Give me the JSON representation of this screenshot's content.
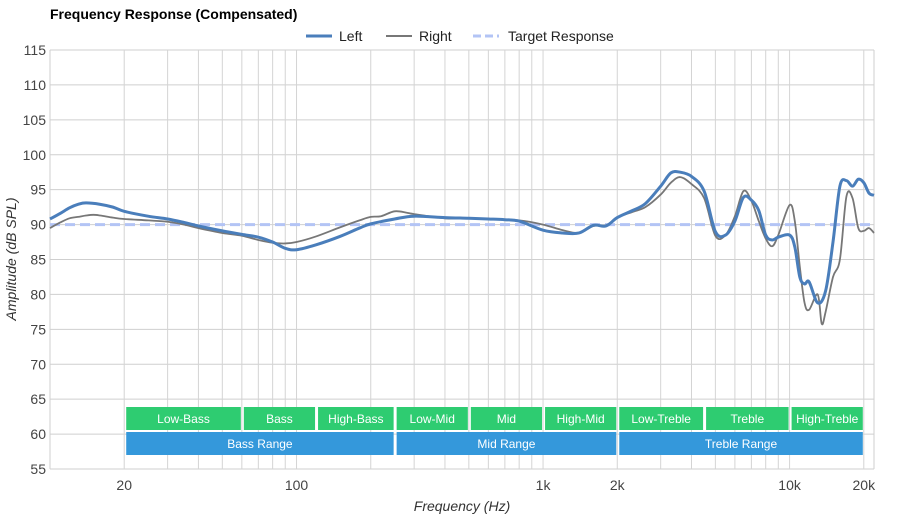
{
  "chart_data": {
    "type": "line",
    "title": "Frequency Response (Compensated)",
    "xlabel": "Frequency (Hz)",
    "ylabel": "Amplitude (dB SPL)",
    "x_scale": "log",
    "xlim": [
      10,
      22000
    ],
    "ylim": [
      55,
      115
    ],
    "yticks": [
      55,
      60,
      65,
      70,
      75,
      80,
      85,
      90,
      95,
      100,
      105,
      110,
      115
    ],
    "xticks": [
      {
        "value": 20,
        "label": "20"
      },
      {
        "value": 100,
        "label": "100"
      },
      {
        "value": 1000,
        "label": "1k"
      },
      {
        "value": 2000,
        "label": "2k"
      },
      {
        "value": 10000,
        "label": "10k"
      },
      {
        "value": 20000,
        "label": "20k"
      }
    ],
    "grid": true,
    "legend_position": "top-center",
    "series": [
      {
        "name": "Left",
        "color": "#4a7ebb",
        "style": "solid",
        "points": [
          [
            10,
            90.8
          ],
          [
            11,
            91.6
          ],
          [
            12,
            92.4
          ],
          [
            13,
            92.9
          ],
          [
            14,
            93.1
          ],
          [
            16,
            92.9
          ],
          [
            18,
            92.5
          ],
          [
            20,
            91.9
          ],
          [
            25,
            91.2
          ],
          [
            30,
            90.8
          ],
          [
            35,
            90.3
          ],
          [
            40,
            89.8
          ],
          [
            50,
            89.1
          ],
          [
            60,
            88.6
          ],
          [
            70,
            88.2
          ],
          [
            80,
            87.5
          ],
          [
            90,
            86.6
          ],
          [
            100,
            86.4
          ],
          [
            120,
            87.1
          ],
          [
            150,
            88.3
          ],
          [
            180,
            89.5
          ],
          [
            200,
            90.1
          ],
          [
            250,
            90.8
          ],
          [
            300,
            91.2
          ],
          [
            400,
            91.0
          ],
          [
            500,
            90.9
          ],
          [
            600,
            90.8
          ],
          [
            700,
            90.7
          ],
          [
            800,
            90.5
          ],
          [
            1000,
            89.2
          ],
          [
            1200,
            88.8
          ],
          [
            1400,
            88.8
          ],
          [
            1600,
            89.9
          ],
          [
            1800,
            89.8
          ],
          [
            2000,
            91.0
          ],
          [
            2300,
            92.0
          ],
          [
            2600,
            93.0
          ],
          [
            3000,
            95.5
          ],
          [
            3300,
            97.4
          ],
          [
            3600,
            97.5
          ],
          [
            4000,
            96.9
          ],
          [
            4500,
            94.8
          ],
          [
            5000,
            89.0
          ],
          [
            5500,
            88.5
          ],
          [
            6000,
            90.5
          ],
          [
            6500,
            93.9
          ],
          [
            7000,
            93.5
          ],
          [
            7500,
            92.0
          ],
          [
            8000,
            88.5
          ],
          [
            8500,
            87.8
          ],
          [
            9000,
            88.2
          ],
          [
            10000,
            88.5
          ],
          [
            10500,
            86.8
          ],
          [
            11000,
            82.5
          ],
          [
            11500,
            81.5
          ],
          [
            12000,
            81.8
          ],
          [
            13000,
            78.8
          ],
          [
            14000,
            80.5
          ],
          [
            15000,
            87.5
          ],
          [
            16000,
            95.5
          ],
          [
            17000,
            96.3
          ],
          [
            18000,
            95.5
          ],
          [
            19000,
            96.5
          ],
          [
            20000,
            96.0
          ],
          [
            21000,
            94.5
          ],
          [
            22000,
            94.2
          ]
        ]
      },
      {
        "name": "Right",
        "color": "#777777",
        "style": "solid",
        "points": [
          [
            10,
            89.5
          ],
          [
            11,
            90.3
          ],
          [
            12,
            90.9
          ],
          [
            13,
            91.1
          ],
          [
            14,
            91.3
          ],
          [
            15,
            91.4
          ],
          [
            16,
            91.3
          ],
          [
            18,
            91.0
          ],
          [
            20,
            90.8
          ],
          [
            25,
            90.6
          ],
          [
            30,
            90.4
          ],
          [
            35,
            90.0
          ],
          [
            40,
            89.5
          ],
          [
            50,
            88.8
          ],
          [
            60,
            88.4
          ],
          [
            70,
            87.8
          ],
          [
            80,
            87.4
          ],
          [
            90,
            87.3
          ],
          [
            100,
            87.5
          ],
          [
            120,
            88.3
          ],
          [
            150,
            89.6
          ],
          [
            180,
            90.6
          ],
          [
            200,
            91.1
          ],
          [
            220,
            91.2
          ],
          [
            250,
            91.9
          ],
          [
            280,
            91.7
          ],
          [
            300,
            91.5
          ],
          [
            400,
            90.9
          ],
          [
            500,
            90.9
          ],
          [
            600,
            90.8
          ],
          [
            800,
            90.6
          ],
          [
            1000,
            90.0
          ],
          [
            1200,
            89.2
          ],
          [
            1400,
            88.8
          ],
          [
            1600,
            89.8
          ],
          [
            1800,
            89.9
          ],
          [
            2000,
            91.0
          ],
          [
            2300,
            91.8
          ],
          [
            2600,
            92.5
          ],
          [
            3000,
            94.3
          ],
          [
            3300,
            96.0
          ],
          [
            3600,
            96.8
          ],
          [
            4000,
            95.8
          ],
          [
            4500,
            93.8
          ],
          [
            5000,
            88.4
          ],
          [
            5500,
            88.5
          ],
          [
            6000,
            91.2
          ],
          [
            6500,
            94.8
          ],
          [
            7000,
            93.4
          ],
          [
            7500,
            90.5
          ],
          [
            8000,
            88.0
          ],
          [
            8500,
            86.9
          ],
          [
            9000,
            88.5
          ],
          [
            10000,
            92.8
          ],
          [
            10500,
            90.5
          ],
          [
            11000,
            84.0
          ],
          [
            11500,
            78.8
          ],
          [
            12000,
            77.8
          ],
          [
            13000,
            80.0
          ],
          [
            13500,
            75.8
          ],
          [
            14000,
            77.5
          ],
          [
            15000,
            82.5
          ],
          [
            16000,
            85.0
          ],
          [
            17000,
            94.0
          ],
          [
            18000,
            93.8
          ],
          [
            19000,
            89.5
          ],
          [
            20000,
            89.1
          ],
          [
            21000,
            89.5
          ],
          [
            22000,
            88.8
          ]
        ]
      },
      {
        "name": "Target Response",
        "color": "#b3c4f5",
        "style": "dashed",
        "points": [
          [
            10,
            90.0
          ],
          [
            22000,
            90.0
          ]
        ]
      }
    ],
    "bands": [
      {
        "row": 1,
        "label": "Low-Bass",
        "from": 20,
        "to": 60,
        "color": "#2ecc71"
      },
      {
        "row": 1,
        "label": "Bass",
        "from": 60,
        "to": 120,
        "color": "#2ecc71"
      },
      {
        "row": 1,
        "label": "High-Bass",
        "from": 120,
        "to": 250,
        "color": "#2ecc71"
      },
      {
        "row": 1,
        "label": "Low-Mid",
        "from": 250,
        "to": 500,
        "color": "#2ecc71"
      },
      {
        "row": 1,
        "label": "Mid",
        "from": 500,
        "to": 1000,
        "color": "#2ecc71"
      },
      {
        "row": 1,
        "label": "High-Mid",
        "from": 1000,
        "to": 2000,
        "color": "#2ecc71"
      },
      {
        "row": 1,
        "label": "Low-Treble",
        "from": 2000,
        "to": 4500,
        "color": "#2ecc71"
      },
      {
        "row": 1,
        "label": "Treble",
        "from": 4500,
        "to": 10000,
        "color": "#2ecc71"
      },
      {
        "row": 1,
        "label": "High-Treble",
        "from": 10000,
        "to": 20000,
        "color": "#2ecc71"
      },
      {
        "row": 2,
        "label": "Bass Range",
        "from": 20,
        "to": 250,
        "color": "#3498db"
      },
      {
        "row": 2,
        "label": "Mid Range",
        "from": 250,
        "to": 2000,
        "color": "#3498db"
      },
      {
        "row": 2,
        "label": "Treble Range",
        "from": 2000,
        "to": 20000,
        "color": "#3498db"
      }
    ]
  }
}
